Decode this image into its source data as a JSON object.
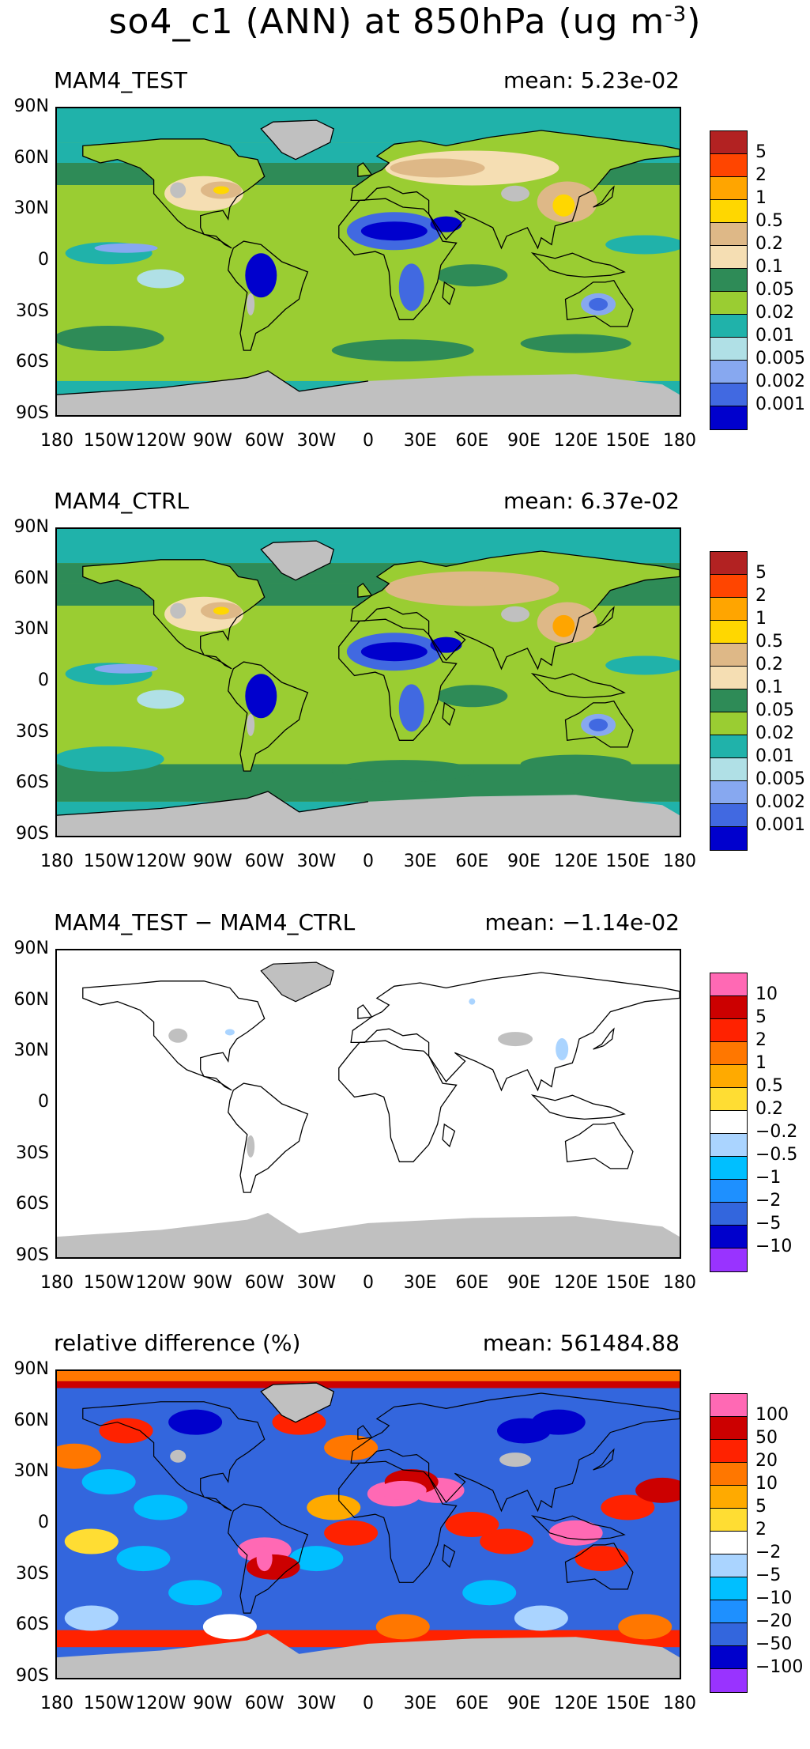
{
  "title": "so4_c1 (ANN) at 850hPa (ug m",
  "title_exp": "-3",
  "title_close": ")",
  "lat_labels": [
    "90N",
    "60N",
    "30N",
    "0",
    "30S",
    "60S",
    "90S"
  ],
  "lon_labels": [
    "180",
    "150W",
    "120W",
    "90W",
    "60W",
    "30W",
    "0",
    "30E",
    "60E",
    "90E",
    "120E",
    "150E",
    "180"
  ],
  "panels": [
    {
      "title": "MAM4_TEST",
      "mean": "mean: 5.23e-02",
      "colorbar": {
        "colors": [
          "#b22222",
          "#ff4500",
          "#ffa500",
          "#ffd700",
          "#deb887",
          "#f5deb3",
          "#2e8b57",
          "#9acd32",
          "#20b2aa",
          "#b0e0e6",
          "#87a8f0",
          "#4169e1",
          "#0000cd"
        ],
        "labels": [
          "5",
          "2",
          "1",
          "0.5",
          "0.2",
          "0.1",
          "0.05",
          "0.02",
          "0.01",
          "0.005",
          "0.002",
          "0.001"
        ]
      }
    },
    {
      "title": "MAM4_CTRL",
      "mean": "mean: 6.37e-02",
      "colorbar": {
        "colors": [
          "#b22222",
          "#ff4500",
          "#ffa500",
          "#ffd700",
          "#deb887",
          "#f5deb3",
          "#2e8b57",
          "#9acd32",
          "#20b2aa",
          "#b0e0e6",
          "#87a8f0",
          "#4169e1",
          "#0000cd"
        ],
        "labels": [
          "5",
          "2",
          "1",
          "0.5",
          "0.2",
          "0.1",
          "0.05",
          "0.02",
          "0.01",
          "0.005",
          "0.002",
          "0.001"
        ]
      }
    },
    {
      "title": "MAM4_TEST − MAM4_CTRL",
      "mean": "mean: −1.14e-02",
      "colorbar": {
        "colors": [
          "#ff69b4",
          "#cc0000",
          "#ff2200",
          "#ff7700",
          "#ffaa00",
          "#ffdd33",
          "#ffffff",
          "#aad4ff",
          "#00bfff",
          "#1e90ff",
          "#3366dd",
          "#0000cc",
          "#9933ff"
        ],
        "labels": [
          "10",
          "5",
          "2",
          "1",
          "0.5",
          "0.2",
          "−0.2",
          "−0.5",
          "−1",
          "−2",
          "−5",
          "−10"
        ]
      }
    },
    {
      "title": "relative difference (%)",
      "mean": "mean: 561484.88",
      "colorbar": {
        "colors": [
          "#ff69b4",
          "#cc0000",
          "#ff2200",
          "#ff7700",
          "#ffaa00",
          "#ffdd33",
          "#ffffff",
          "#aad4ff",
          "#00bfff",
          "#1e90ff",
          "#3366dd",
          "#0000cc",
          "#9933ff"
        ],
        "labels": [
          "100",
          "50",
          "20",
          "10",
          "5",
          "2",
          "−2",
          "−5",
          "−10",
          "−20",
          "−50",
          "−100"
        ]
      }
    }
  ],
  "chart_data": [
    {
      "type": "heatmap",
      "title": "MAM4_TEST",
      "subtitle": "mean: 5.23e-02",
      "x_range": [
        -180,
        180
      ],
      "y_range": [
        -90,
        90
      ],
      "legend_levels": [
        "5",
        "2",
        "1",
        "0.5",
        "0.2",
        "0.1",
        "0.05",
        "0.02",
        "0.01",
        "0.005",
        "0.002",
        "0.001"
      ],
      "mean": 0.0523
    },
    {
      "type": "heatmap",
      "title": "MAM4_CTRL",
      "subtitle": "mean: 6.37e-02",
      "x_range": [
        -180,
        180
      ],
      "y_range": [
        -90,
        90
      ],
      "legend_levels": [
        "5",
        "2",
        "1",
        "0.5",
        "0.2",
        "0.1",
        "0.05",
        "0.02",
        "0.01",
        "0.005",
        "0.002",
        "0.001"
      ],
      "mean": 0.0637
    },
    {
      "type": "heatmap",
      "title": "MAM4_TEST − MAM4_CTRL",
      "subtitle": "mean: −1.14e-02",
      "x_range": [
        -180,
        180
      ],
      "y_range": [
        -90,
        90
      ],
      "legend_levels": [
        "10",
        "5",
        "2",
        "1",
        "0.5",
        "0.2",
        "−0.2",
        "−0.5",
        "−1",
        "−2",
        "−5",
        "−10"
      ],
      "mean": -0.0114
    },
    {
      "type": "heatmap",
      "title": "relative difference (%)",
      "subtitle": "mean: 561484.88",
      "x_range": [
        -180,
        180
      ],
      "y_range": [
        -90,
        90
      ],
      "legend_levels": [
        "100",
        "50",
        "20",
        "10",
        "5",
        "2",
        "−2",
        "−5",
        "−10",
        "−20",
        "−50",
        "−100"
      ],
      "mean": 561484.88
    }
  ]
}
